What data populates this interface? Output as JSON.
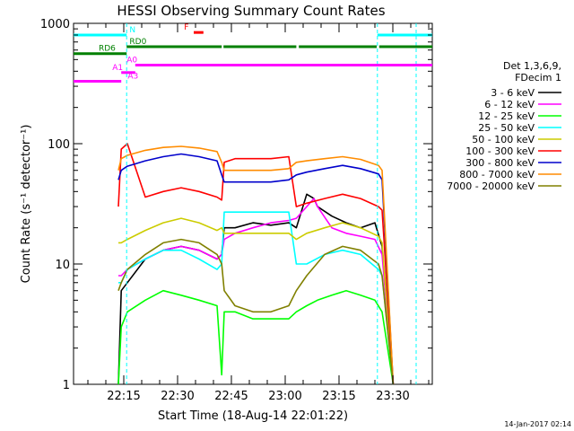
{
  "chart_data": {
    "type": "line",
    "title": "HESSI Observing Summary Count Rates",
    "xlabel": "Start Time (18-Aug-14 22:01:22)",
    "ylabel": "Count Rate (s⁻¹ detector⁻¹)",
    "ylim": [
      1,
      1000
    ],
    "yscale": "log",
    "xlim_minutes": [
      0,
      100
    ],
    "x_unit": "minutes since 22:01:22",
    "y_ticks": [
      1,
      10,
      100,
      1000
    ],
    "y_tick_labels": [
      "1",
      "10",
      "100",
      "1000"
    ],
    "x_ticks": [
      14,
      29,
      44,
      59,
      74,
      89
    ],
    "x_tick_labels": [
      "22:15",
      "22:30",
      "22:45",
      "23:00",
      "23:15",
      "23:30"
    ],
    "grid": false,
    "legend_position": "right",
    "legend_header": [
      "Det 1,3,6,9,",
      "FDecim 1"
    ],
    "series": [
      {
        "name": "3 - 6 keV",
        "color": "#000000",
        "x": [
          12.5,
          13.3,
          15,
          20,
          25,
          30,
          35,
          40,
          41.3,
          42,
          45,
          50,
          55,
          60,
          62.1,
          65,
          67,
          68,
          72,
          76,
          80,
          84,
          86,
          89.1
        ],
        "y": [
          1,
          6,
          7,
          11,
          13,
          14,
          13,
          11,
          12,
          20,
          20,
          22,
          21,
          22,
          20,
          38,
          35,
          30,
          25,
          22,
          20,
          22,
          14,
          1
        ]
      },
      {
        "name": "6 - 12 keV",
        "color": "#ff00ff",
        "x": [
          12.5,
          13.3,
          15,
          20,
          25,
          30,
          35,
          40,
          41.3,
          42,
          45,
          50,
          55,
          60,
          62.1,
          65,
          67,
          68,
          72,
          76,
          80,
          84,
          86,
          89.1
        ],
        "y": [
          8,
          8,
          9,
          11,
          13,
          14,
          13,
          11,
          12,
          16,
          18,
          20,
          22,
          23,
          24,
          30,
          35,
          30,
          20,
          18,
          17,
          16,
          12,
          1
        ]
      },
      {
        "name": "12 - 25 keV",
        "color": "#00ff00",
        "x": [
          12.5,
          13.3,
          15,
          20,
          25,
          30,
          35,
          40,
          41.3,
          42,
          45,
          50,
          55,
          60,
          62.1,
          65,
          68,
          72,
          76,
          80,
          84,
          86,
          89.1
        ],
        "y": [
          1,
          3,
          4,
          5,
          6,
          5.5,
          5,
          4.5,
          1.2,
          4,
          4,
          3.5,
          3.5,
          3.5,
          4,
          4.5,
          5,
          5.5,
          6,
          5.5,
          5,
          4,
          1
        ]
      },
      {
        "name": "25 - 50 keV",
        "color": "#00ffff",
        "x": [
          12.5,
          13.3,
          15,
          20,
          25,
          30,
          35,
          40,
          41.3,
          42,
          45,
          50,
          55,
          60,
          62.1,
          65,
          70,
          75,
          80,
          85,
          86,
          89.1
        ],
        "y": [
          7,
          7,
          9,
          11,
          13,
          13,
          11,
          9,
          10,
          27,
          27,
          27,
          27,
          27,
          10,
          10,
          12,
          13,
          12,
          9,
          8,
          1
        ]
      },
      {
        "name": "50 - 100 keV",
        "color": "#cccc00",
        "x": [
          12.5,
          13.3,
          15,
          20,
          25,
          30,
          35,
          40,
          41.3,
          42,
          45,
          50,
          55,
          60,
          62.1,
          65,
          70,
          75,
          80,
          85,
          86,
          89.1
        ],
        "y": [
          15,
          15,
          16,
          19,
          22,
          24,
          22,
          19,
          20,
          18,
          18,
          18,
          18,
          18,
          16,
          18,
          20,
          22,
          20,
          17,
          15,
          1
        ]
      },
      {
        "name": "100 - 300 keV",
        "color": "#ff0000",
        "x": [
          12.5,
          13.3,
          15,
          20,
          25,
          30,
          35,
          40,
          41.3,
          42,
          45,
          50,
          55,
          60,
          62.1,
          65,
          70,
          75,
          80,
          85,
          86,
          89.1
        ],
        "y": [
          30,
          90,
          100,
          36,
          40,
          43,
          40,
          36,
          34,
          70,
          75,
          75,
          75,
          78,
          30,
          32,
          35,
          38,
          35,
          30,
          28,
          1
        ]
      },
      {
        "name": "300 - 800 keV",
        "color": "#0000cc",
        "x": [
          12.5,
          13.3,
          15,
          20,
          25,
          30,
          35,
          40,
          41.3,
          42,
          45,
          50,
          55,
          60,
          62.1,
          65,
          70,
          75,
          80,
          85,
          86,
          89.1
        ],
        "y": [
          50,
          60,
          65,
          72,
          78,
          82,
          78,
          72,
          55,
          48,
          48,
          48,
          48,
          50,
          55,
          58,
          62,
          66,
          62,
          56,
          50,
          1
        ]
      },
      {
        "name": "800 - 7000 keV",
        "color": "#ff8c00",
        "x": [
          12.5,
          13.3,
          15,
          20,
          25,
          30,
          35,
          40,
          41.3,
          42,
          45,
          50,
          55,
          60,
          62.1,
          65,
          70,
          75,
          80,
          85,
          86,
          89.1
        ],
        "y": [
          60,
          75,
          80,
          88,
          93,
          95,
          92,
          86,
          70,
          60,
          60,
          60,
          60,
          62,
          70,
          72,
          75,
          78,
          74,
          66,
          60,
          1
        ]
      },
      {
        "name": "7000 - 20000 keV",
        "color": "#808000",
        "x": [
          12.5,
          13.3,
          15,
          20,
          25,
          30,
          35,
          40,
          41.3,
          42,
          45,
          50,
          55,
          60,
          62.1,
          65,
          70,
          75,
          80,
          85,
          86,
          89.1
        ],
        "y": [
          6,
          7,
          9,
          12,
          15,
          16,
          15,
          12,
          10,
          6,
          4.5,
          4,
          4,
          4.5,
          6,
          8,
          12,
          14,
          13,
          10,
          8,
          1
        ]
      }
    ],
    "state_bars": [
      {
        "label": "N",
        "color": "#00ffff",
        "y": 800,
        "segments": [
          [
            0,
            14.8
          ],
          [
            84.7,
            100
          ]
        ],
        "label_x": 15.6
      },
      {
        "label": "RD0",
        "color": "#008000",
        "y": 640,
        "segments": [
          [
            14.8,
            41.3
          ],
          [
            41.8,
            62.1
          ],
          [
            62.8,
            84.5
          ],
          [
            85.2,
            100
          ]
        ],
        "label_x": 15.6
      },
      {
        "label": "RD6",
        "color": "#008000",
        "y": 560,
        "segments": [
          [
            0,
            14.8
          ]
        ],
        "label_x": 7
      },
      {
        "label": "A0",
        "color": "#ff00ff",
        "y": 450,
        "segments": [
          [
            17.2,
            100
          ]
        ],
        "label_x": 14.8
      },
      {
        "label": "A1",
        "color": "#ff00ff",
        "y": 390,
        "segments": [
          [
            13.3,
            17.2
          ]
        ],
        "label_x": 10.8
      },
      {
        "label": "A3",
        "color": "#ff00ff",
        "y": 330,
        "segments": [
          [
            0,
            13.3
          ]
        ],
        "label_x": 15.1
      },
      {
        "label": "F",
        "color": "#ff0000",
        "y": 840,
        "segments": [
          [
            33.5,
            36.2
          ]
        ],
        "label_x": 30.8
      }
    ],
    "vertical_markers": [
      {
        "x": 14.8,
        "color": "#00ffff"
      },
      {
        "x": 84.7,
        "color": "#00ffff"
      },
      {
        "x": 95.5,
        "color": "#00ffff"
      }
    ],
    "date_stamp": "14-Jan-2017 02:14"
  }
}
